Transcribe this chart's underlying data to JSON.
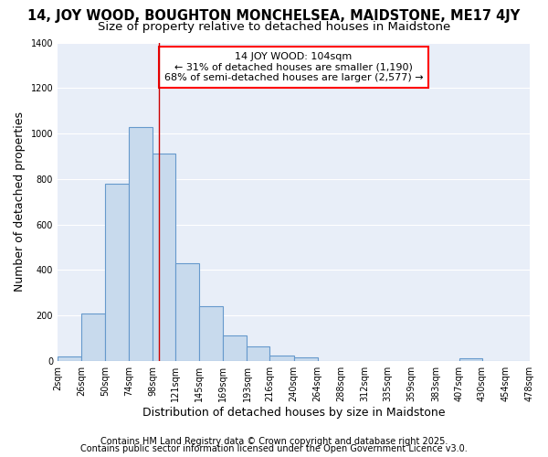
{
  "title": "14, JOY WOOD, BOUGHTON MONCHELSEA, MAIDSTONE, ME17 4JY",
  "subtitle": "Size of property relative to detached houses in Maidstone",
  "xlabel": "Distribution of detached houses by size in Maidstone",
  "ylabel": "Number of detached properties",
  "bar_color": "#c8daed",
  "bar_edge_color": "#6699cc",
  "background_color": "#ffffff",
  "axes_bg_color": "#e8eef8",
  "grid_color": "#ffffff",
  "bins": [
    2,
    26,
    50,
    74,
    98,
    121,
    145,
    169,
    193,
    216,
    240,
    264,
    288,
    312,
    335,
    359,
    383,
    407,
    430,
    454,
    478
  ],
  "bin_labels": [
    "2sqm",
    "26sqm",
    "50sqm",
    "74sqm",
    "98sqm",
    "121sqm",
    "145sqm",
    "169sqm",
    "193sqm",
    "216sqm",
    "240sqm",
    "264sqm",
    "288sqm",
    "312sqm",
    "335sqm",
    "359sqm",
    "383sqm",
    "407sqm",
    "430sqm",
    "454sqm",
    "478sqm"
  ],
  "values": [
    20,
    210,
    780,
    1030,
    910,
    430,
    240,
    110,
    65,
    25,
    15,
    0,
    0,
    0,
    0,
    0,
    0,
    10,
    0,
    0
  ],
  "vline_x": 104,
  "vline_color": "#cc0000",
  "annotation_text": "14 JOY WOOD: 104sqm\n← 31% of detached houses are smaller (1,190)\n68% of semi-detached houses are larger (2,577) →",
  "annotation_box_color": "white",
  "annotation_edge_color": "red",
  "ylim": [
    0,
    1400
  ],
  "yticks": [
    0,
    200,
    400,
    600,
    800,
    1000,
    1200,
    1400
  ],
  "footnote1": "Contains HM Land Registry data © Crown copyright and database right 2025.",
  "footnote2": "Contains public sector information licensed under the Open Government Licence v3.0.",
  "title_fontsize": 10.5,
  "subtitle_fontsize": 9.5,
  "label_fontsize": 9,
  "tick_fontsize": 7,
  "annotation_fontsize": 8,
  "footnote_fontsize": 7
}
